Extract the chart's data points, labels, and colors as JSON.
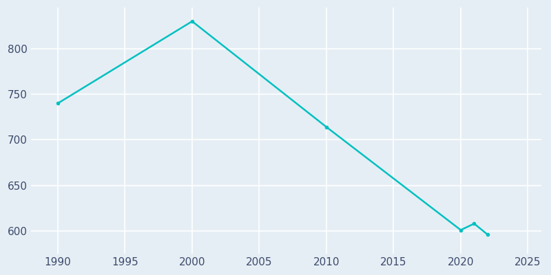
{
  "years": [
    1990,
    2000,
    2010,
    2020,
    2021,
    2022
  ],
  "population": [
    740,
    830,
    714,
    601,
    608,
    596
  ],
  "line_color": "#00C0C0",
  "bg_color": "#E6EEF5",
  "grid_color": "#FFFFFF",
  "tick_color": "#3B4A6B",
  "xlim": [
    1988,
    2026
  ],
  "ylim": [
    575,
    845
  ],
  "xticks": [
    1990,
    1995,
    2000,
    2005,
    2010,
    2015,
    2020,
    2025
  ],
  "yticks": [
    600,
    650,
    700,
    750,
    800
  ]
}
